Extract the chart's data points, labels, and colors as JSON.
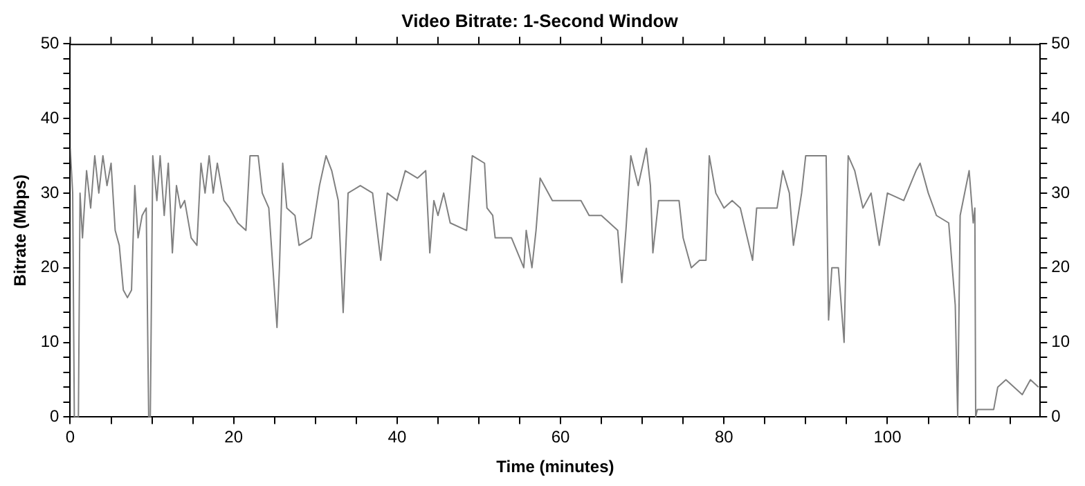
{
  "chart_data": {
    "type": "line",
    "title": "Video Bitrate: 1-Second Window",
    "xlabel": "Time (minutes)",
    "ylabel": "Bitrate (Mbps)",
    "x": [
      0,
      0.3,
      0.5,
      1.0,
      1.2,
      1.5,
      2,
      2.5,
      3,
      3.5,
      4,
      4.5,
      5,
      5.5,
      6,
      6.5,
      7,
      7.5,
      7.9,
      8.3,
      8.8,
      9.3,
      9.6,
      9.8,
      10.1,
      10.6,
      11,
      11.5,
      12,
      12.5,
      13,
      13.5,
      14,
      14.8,
      15.5,
      16,
      16.5,
      17,
      17.5,
      18,
      18.8,
      19.5,
      20.5,
      21.5,
      22,
      23,
      23.5,
      24.3,
      24.8,
      25.3,
      25.6,
      26,
      26.5,
      27.5,
      28,
      29.5,
      30.5,
      31.3,
      32,
      32.8,
      33.4,
      34,
      35.5,
      37,
      38,
      38.8,
      40,
      41,
      42.5,
      43.5,
      44,
      44.5,
      45,
      45.7,
      46.5,
      48.5,
      49.2,
      50.7,
      51,
      51.7,
      52,
      54,
      55.5,
      55.8,
      56.5,
      57,
      57.5,
      58,
      59,
      61,
      62.5,
      63.5,
      65,
      67,
      67.5,
      68,
      68.6,
      69.5,
      70.5,
      71,
      71.3,
      72,
      74.5,
      75,
      76,
      77,
      77.8,
      78.2,
      79,
      80,
      81,
      82,
      83.5,
      84,
      86.5,
      87.2,
      88,
      88.5,
      89.5,
      90,
      91.5,
      92.5,
      92.8,
      93.2,
      94,
      94.7,
      95.2,
      96,
      97,
      98,
      99,
      100,
      102,
      103.5,
      104,
      105,
      106,
      107.5,
      108.3,
      108.6,
      108.9,
      110,
      110.5,
      110.7,
      110.8,
      111,
      113,
      113.5,
      114.5,
      115.5,
      116.5,
      117.5,
      118.5
    ],
    "series": [
      {
        "color": "#808080",
        "values": [
          36,
          30,
          0,
          0,
          30,
          24,
          33,
          28,
          35,
          30,
          35,
          31,
          34,
          25,
          23,
          17,
          16,
          17,
          31,
          24,
          27,
          28,
          0,
          0,
          35,
          29,
          35,
          27,
          34,
          22,
          31,
          28,
          29,
          24,
          23,
          34,
          30,
          35,
          30,
          34,
          29,
          28,
          26,
          25,
          35,
          35,
          30,
          28,
          20,
          12,
          20,
          34,
          28,
          27,
          23,
          24,
          31,
          35,
          33,
          29,
          14,
          30,
          31,
          30,
          21,
          30,
          29,
          33,
          32,
          33,
          22,
          29,
          27,
          30,
          26,
          25,
          35,
          34,
          28,
          27,
          24,
          24,
          20,
          25,
          20,
          25,
          32,
          31,
          29,
          29,
          29,
          27,
          27,
          25,
          18,
          25,
          35,
          31,
          36,
          31,
          22,
          29,
          29,
          24,
          20,
          21,
          21,
          35,
          30,
          28,
          29,
          28,
          21,
          28,
          28,
          33,
          30,
          23,
          30,
          35,
          35,
          35,
          13,
          20,
          20,
          10,
          35,
          33,
          28,
          30,
          23,
          30,
          29,
          33,
          34,
          30,
          27,
          26,
          15,
          0,
          27,
          33,
          26,
          28,
          0,
          1,
          1,
          4,
          5,
          4,
          3,
          5,
          4
        ]
      }
    ],
    "xlim": [
      0,
      118.7
    ],
    "xticks": [
      0,
      {
        "value": 5,
        "label": null
      },
      {
        "value": 10,
        "label": null
      },
      {
        "value": 15,
        "label": null
      },
      20,
      {
        "value": 25,
        "label": null
      },
      {
        "value": 30,
        "label": null
      },
      {
        "value": 35,
        "label": null
      },
      40,
      {
        "value": 45,
        "label": null
      },
      {
        "value": 50,
        "label": null
      },
      {
        "value": 55,
        "label": null
      },
      60,
      {
        "value": 65,
        "label": null
      },
      {
        "value": 70,
        "label": null
      },
      {
        "value": 75,
        "label": null
      },
      80,
      {
        "value": 85,
        "label": null
      },
      {
        "value": 90,
        "label": null
      },
      {
        "value": 95,
        "label": null
      },
      100,
      {
        "value": 105,
        "label": null
      },
      {
        "value": 110,
        "label": null
      },
      {
        "value": 115,
        "label": null
      }
    ],
    "ylim": [
      0,
      50
    ],
    "yticks": [
      0,
      {
        "value": 2,
        "label": null
      },
      {
        "value": 4,
        "label": null
      },
      {
        "value": 6,
        "label": null
      },
      {
        "value": 8,
        "label": null
      },
      10,
      {
        "value": 12,
        "label": null
      },
      {
        "value": 14,
        "label": null
      },
      {
        "value": 16,
        "label": null
      },
      {
        "value": 18,
        "label": null
      },
      20,
      {
        "value": 22,
        "label": null
      },
      {
        "value": 24,
        "label": null
      },
      {
        "value": 26,
        "label": null
      },
      {
        "value": 28,
        "label": null
      },
      30,
      {
        "value": 32,
        "label": null
      },
      {
        "value": 34,
        "label": null
      },
      {
        "value": 36,
        "label": null
      },
      {
        "value": 38,
        "label": null
      },
      40,
      {
        "value": 42,
        "label": null
      },
      {
        "value": 44,
        "label": null
      },
      {
        "value": 46,
        "label": null
      },
      {
        "value": 48,
        "label": null
      },
      50
    ],
    "y2lim": [
      0,
      50
    ],
    "y2ticks": [
      0,
      {
        "value": 2,
        "label": null
      },
      {
        "value": 4,
        "label": null
      },
      {
        "value": 6,
        "label": null
      },
      {
        "value": 8,
        "label": null
      },
      10,
      {
        "value": 12,
        "label": null
      },
      {
        "value": 14,
        "label": null
      },
      {
        "value": 16,
        "label": null
      },
      {
        "value": 18,
        "label": null
      },
      20,
      {
        "value": 22,
        "label": null
      },
      {
        "value": 24,
        "label": null
      },
      {
        "value": 26,
        "label": null
      },
      {
        "value": 28,
        "label": null
      },
      30,
      {
        "value": 32,
        "label": null
      },
      {
        "value": 34,
        "label": null
      },
      {
        "value": 36,
        "label": null
      },
      {
        "value": 38,
        "label": null
      },
      40,
      {
        "value": 42,
        "label": null
      },
      {
        "value": 44,
        "label": null
      },
      {
        "value": 46,
        "label": null
      },
      {
        "value": 48,
        "label": null
      },
      50
    ],
    "grid": false,
    "legend": false,
    "marker": "none",
    "line_style": "solid"
  }
}
